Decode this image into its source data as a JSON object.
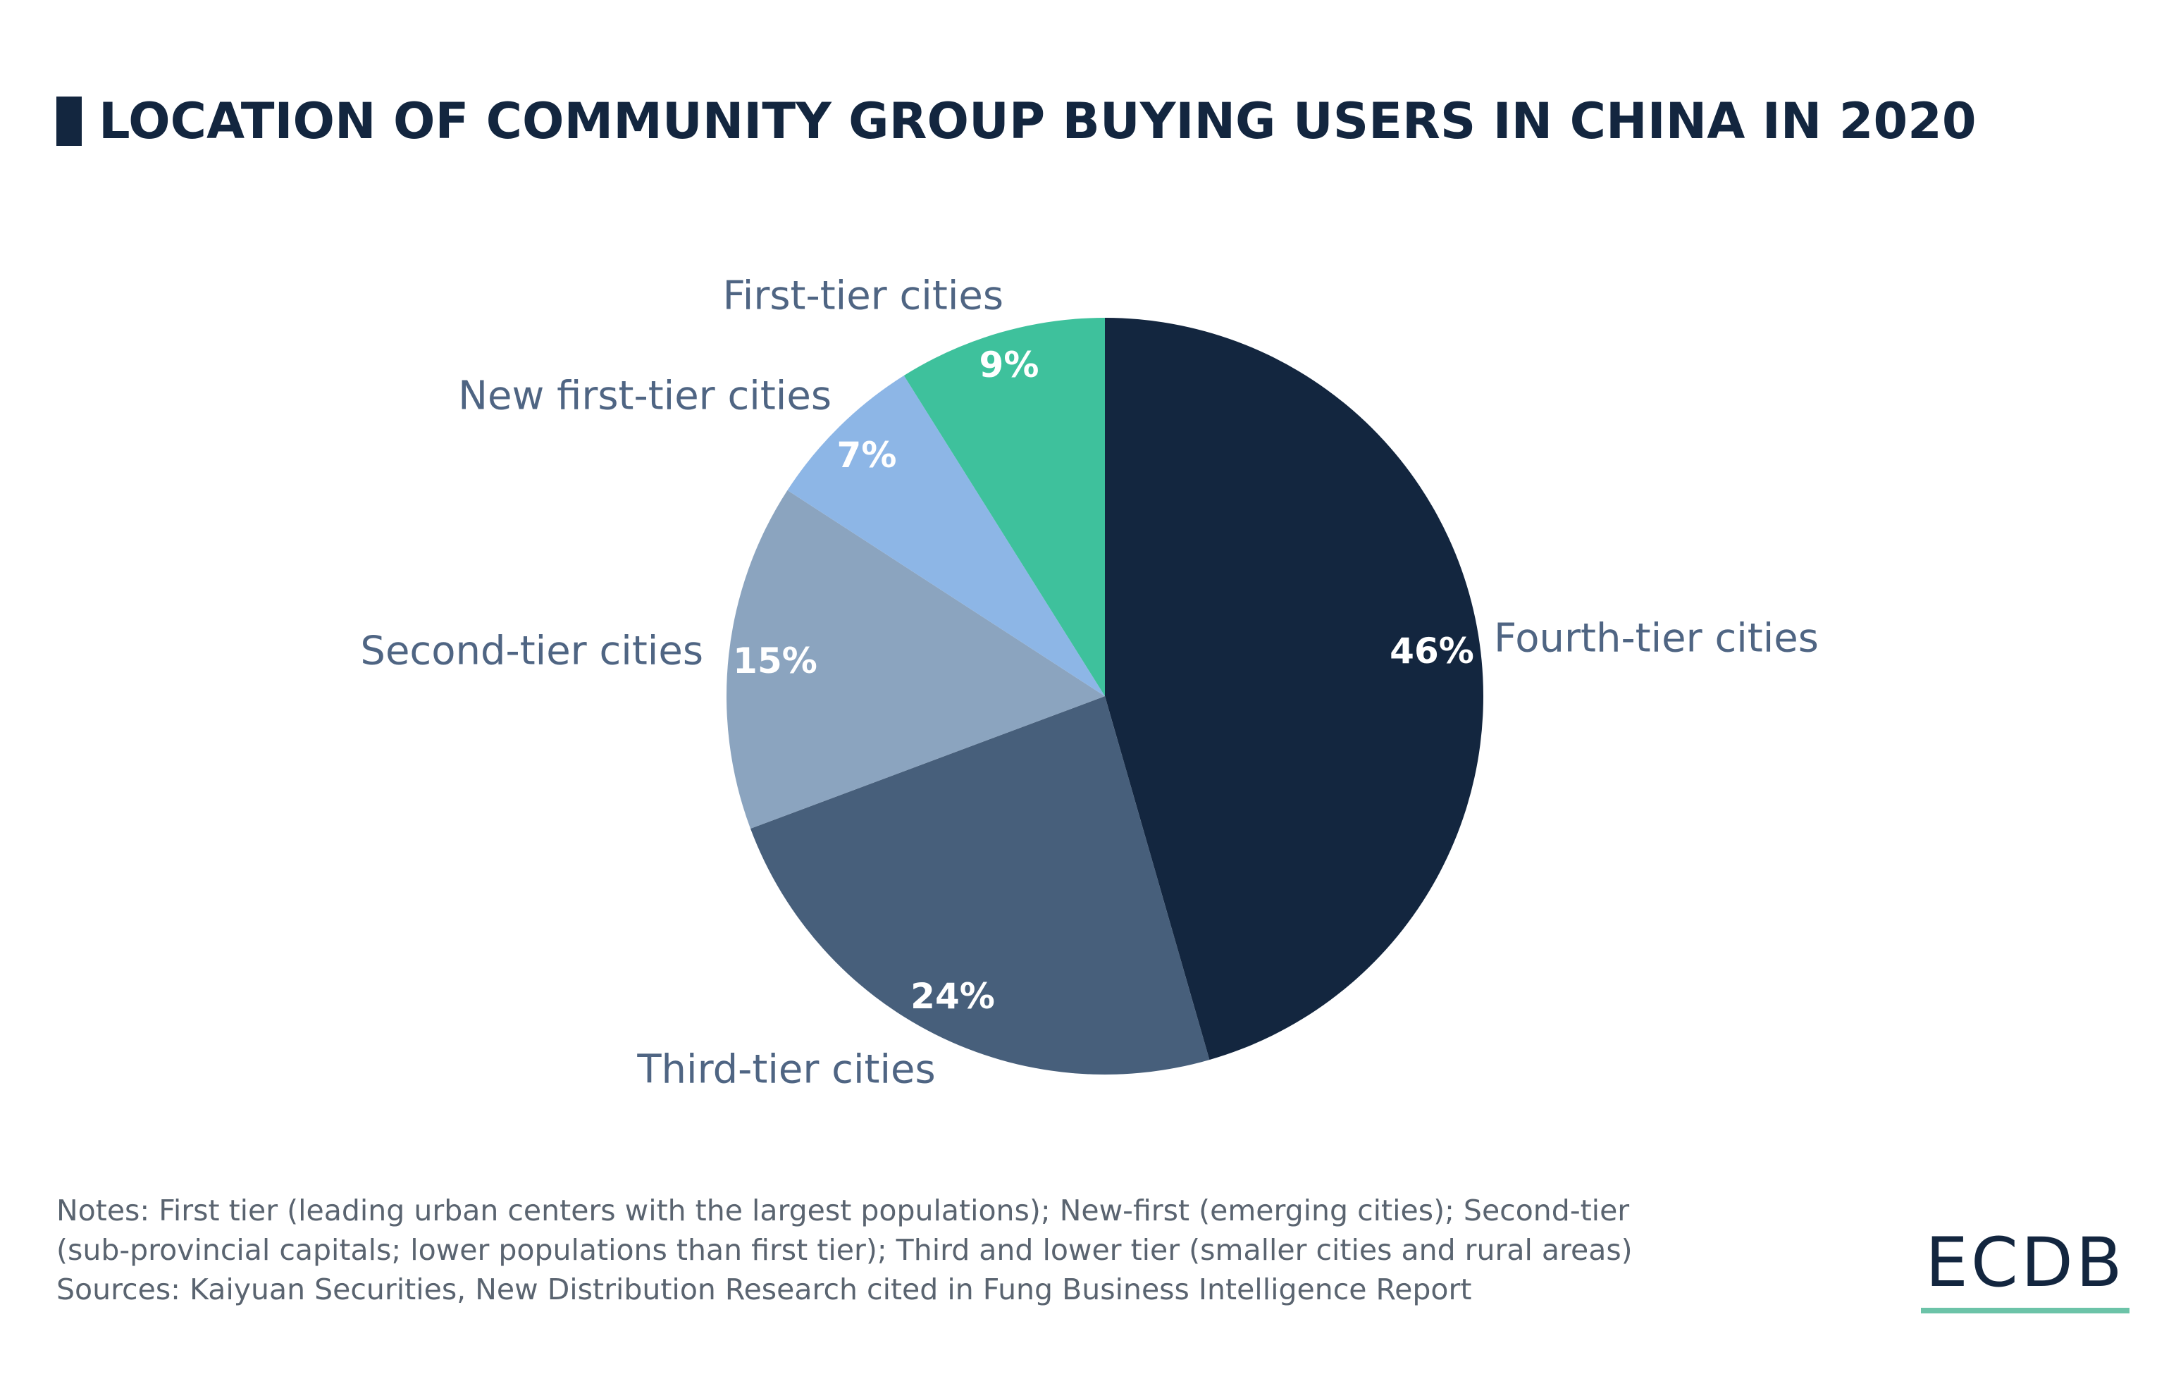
{
  "title": "LOCATION OF COMMUNITY GROUP BUYING USERS IN CHINA IN 2020",
  "chart_data": {
    "type": "pie",
    "title": "LOCATION OF COMMUNITY GROUP BUYING USERS IN CHINA IN 2020",
    "slices": [
      {
        "label": "Fourth-tier cities",
        "value": 46,
        "value_label": "46%",
        "color": "#13263f"
      },
      {
        "label": "Third-tier cities",
        "value": 24,
        "value_label": "24%",
        "color": "#475f7b"
      },
      {
        "label": "Second-tier cities",
        "value": 15,
        "value_label": "15%",
        "color": "#8ba4bf"
      },
      {
        "label": "New first-tier cities",
        "value": 7,
        "value_label": "7%",
        "color": "#8db6e6"
      },
      {
        "label": "First-tier cities",
        "value": 9,
        "value_label": "9%",
        "color": "#3ec19c"
      }
    ]
  },
  "notes": {
    "line1": "Notes: First tier (leading urban centers with the largest populations); New-first (emerging cities); Second-tier",
    "line2": "(sub-provincial capitals; lower populations than first tier); Third and lower tier (smaller cities and rural areas)",
    "line3": "Sources: Kaiyuan Securities, New Distribution Research cited in Fung Business Intelligence Report"
  },
  "logo": {
    "text": "ECDB",
    "underline_color": "#6cc3a8"
  }
}
